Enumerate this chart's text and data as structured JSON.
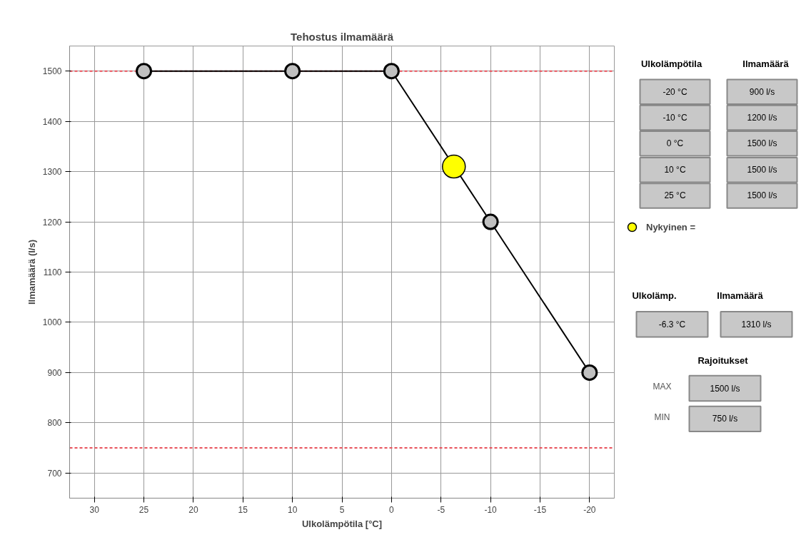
{
  "chart_data": {
    "type": "line",
    "title": "Tehostus ilmamäärä",
    "xlabel": "Ulkolämpötila [°C]",
    "ylabel": "Ilmamäärä (l/s)",
    "xlim": [
      32.5,
      -22.5
    ],
    "xticks": [
      30,
      25,
      20,
      15,
      10,
      5,
      0,
      -5,
      -10,
      -15,
      -20
    ],
    "ylim": [
      650,
      1550
    ],
    "yticks": [
      700,
      800,
      900,
      1000,
      1100,
      1200,
      1300,
      1400,
      1500
    ],
    "grid": true,
    "marker": "circle",
    "line_style": "solid",
    "legend": "right",
    "series": [
      {
        "color": "#c0c0c0",
        "x": [
          25,
          10,
          0,
          -10,
          -20
        ],
        "values": [
          1500,
          1500,
          1500,
          1200,
          900
        ]
      },
      {
        "type": "scatter",
        "name": "Nykyinen =",
        "color": "#ffff00",
        "x": [
          -6.3
        ],
        "values": [
          1310
        ]
      }
    ],
    "ref_lines": [
      {
        "axis": "y",
        "value": 1500,
        "color": "#e8505a",
        "line_style": "dashed"
      },
      {
        "axis": "y",
        "value": 750,
        "color": "#e8505a",
        "line_style": "dashed"
      }
    ],
    "annotations": [
      "Ulkolämpötila",
      "Ilmamäärä",
      "-20 °C",
      "900 l/s",
      "-10 °C",
      "1200 l/s",
      "0 °C",
      "1500 l/s",
      "10 °C",
      "1500 l/s",
      "25 °C",
      "1500 l/s",
      "Ulkolämp.",
      "Ilmamäärä",
      "-6.3 °C",
      "1310 l/s",
      "Rajoitukset",
      "MAX",
      "1500 l/s",
      "MIN",
      "750 l/s"
    ]
  }
}
